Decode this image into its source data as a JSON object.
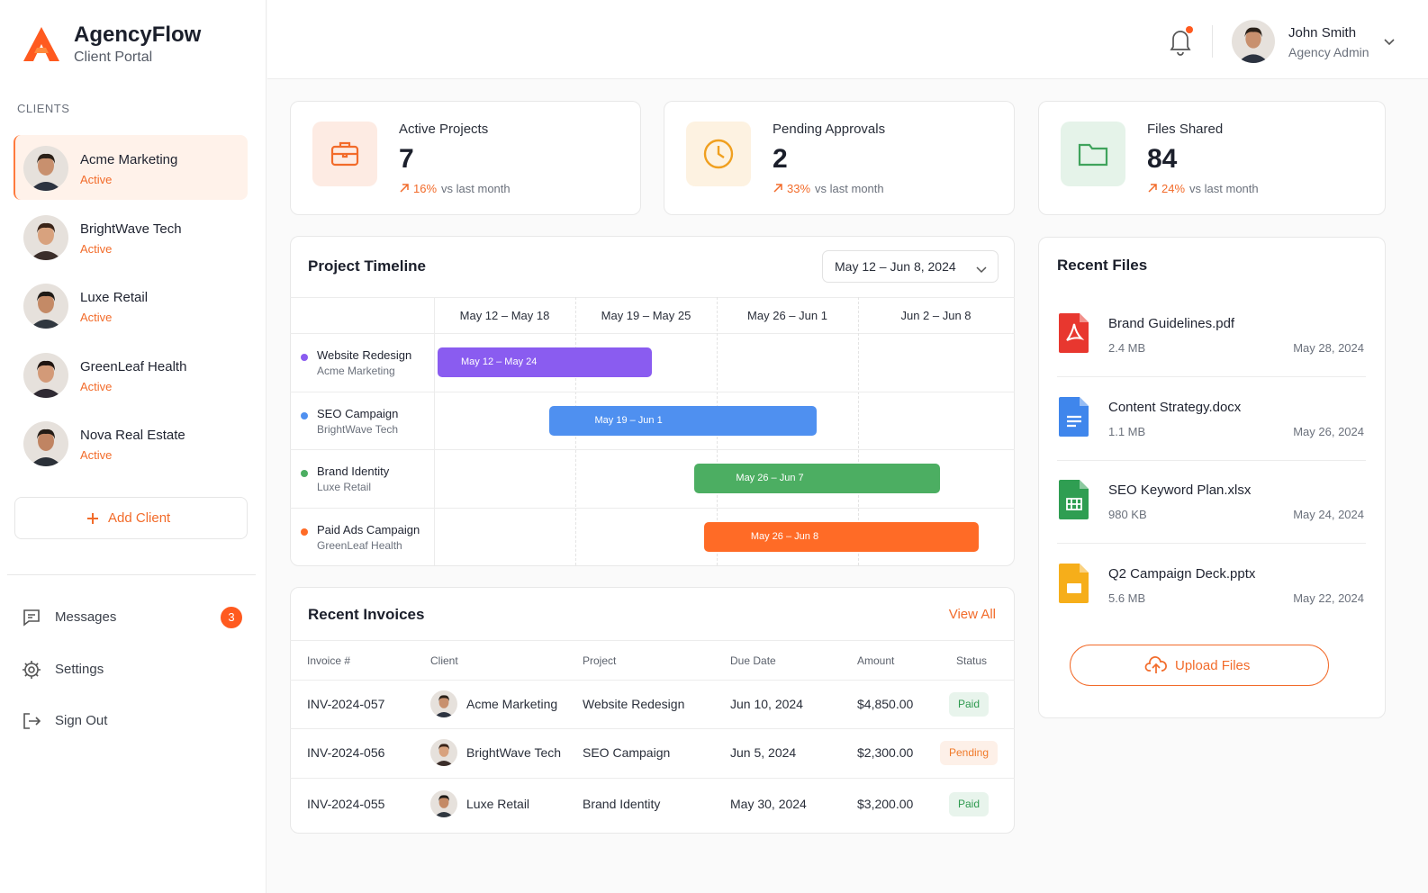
{
  "brand": {
    "name": "AgencyFlow",
    "subtitle": "Client Portal"
  },
  "sidebar": {
    "section": "CLIENTS",
    "clients": [
      {
        "name": "Acme Marketing",
        "status": "Active"
      },
      {
        "name": "BrightWave Tech",
        "status": "Active"
      },
      {
        "name": "Luxe Retail",
        "status": "Active"
      },
      {
        "name": "GreenLeaf Health",
        "status": "Active"
      },
      {
        "name": "Nova Real Estate",
        "status": "Active"
      }
    ],
    "add_client": "Add Client",
    "nav": [
      {
        "label": "Messages",
        "badge": "3"
      },
      {
        "label": "Settings"
      },
      {
        "label": "Sign Out"
      }
    ]
  },
  "header": {
    "user": {
      "name": "John Smith",
      "role": "Agency Admin"
    }
  },
  "stats": [
    {
      "label": "Active Projects",
      "value": "7",
      "change": "16%",
      "note": "vs last month",
      "color": "#f26b2a"
    },
    {
      "label": "Pending Approvals",
      "value": "2",
      "change": "33%",
      "note": "vs last month",
      "color": "#f0a020"
    },
    {
      "label": "Files Shared",
      "value": "84",
      "change": "24%",
      "note": "vs last month",
      "color": "#3fa35c"
    }
  ],
  "timeline": {
    "title": "Project Timeline",
    "range": "May 12 – Jun 8, 2024",
    "weeks": [
      "May 12 – May 18",
      "May 19 – May 25",
      "May 26 – Jun 1",
      "Jun 2 – Jun 8"
    ],
    "projects": [
      {
        "name": "Website Redesign",
        "client": "Acme Marketing",
        "bar": "May 12 – May 24",
        "color": "#8a5cf0"
      },
      {
        "name": "SEO Campaign",
        "client": "BrightWave Tech",
        "bar": "May 19 – Jun 1",
        "color": "#4f90f0"
      },
      {
        "name": "Brand Identity",
        "client": "Luxe Retail",
        "bar": "May 26 – Jun 7",
        "color": "#4cae62"
      },
      {
        "name": "Paid Ads Campaign",
        "client": "GreenLeaf Health",
        "bar": "May 26 – Jun 8",
        "color": "#ff6b26"
      }
    ]
  },
  "invoices": {
    "title": "Recent Invoices",
    "view_all": "View All",
    "columns": [
      "Invoice #",
      "Client",
      "Project",
      "Due Date",
      "Amount",
      "Status"
    ],
    "rows": [
      {
        "invoice": "INV-2024-057",
        "client": "Acme Marketing",
        "project": "Website Redesign",
        "due": "Jun 10, 2024",
        "amount": "$4,850.00",
        "status": "Paid",
        "color": "#2e9a4f"
      },
      {
        "invoice": "INV-2024-056",
        "client": "BrightWave Tech",
        "project": "SEO Campaign",
        "due": "Jun 5, 2024",
        "amount": "$2,300.00",
        "status": "Pending",
        "color": "#f07a2a"
      },
      {
        "invoice": "INV-2024-055",
        "client": "Luxe Retail",
        "project": "Brand Identity",
        "due": "May 30, 2024",
        "amount": "$3,200.00",
        "status": "Paid",
        "color": "#2e9a4f"
      }
    ]
  },
  "files": {
    "title": "Recent Files",
    "items": [
      {
        "name": "Brand Guidelines.pdf",
        "size": "2.4 MB",
        "date": "May 28, 2024",
        "color": "#e8372f"
      },
      {
        "name": "Content Strategy.docx",
        "size": "1.1 MB",
        "date": "May 26, 2024",
        "color": "#3f86ec"
      },
      {
        "name": "SEO Keyword Plan.xlsx",
        "size": "980 KB",
        "date": "May 24, 2024",
        "color": "#2f9e52"
      },
      {
        "name": "Q2 Campaign Deck.pptx",
        "size": "5.6 MB",
        "date": "May 22, 2024",
        "color": "#f6ae1a"
      }
    ],
    "upload": "Upload Files"
  }
}
